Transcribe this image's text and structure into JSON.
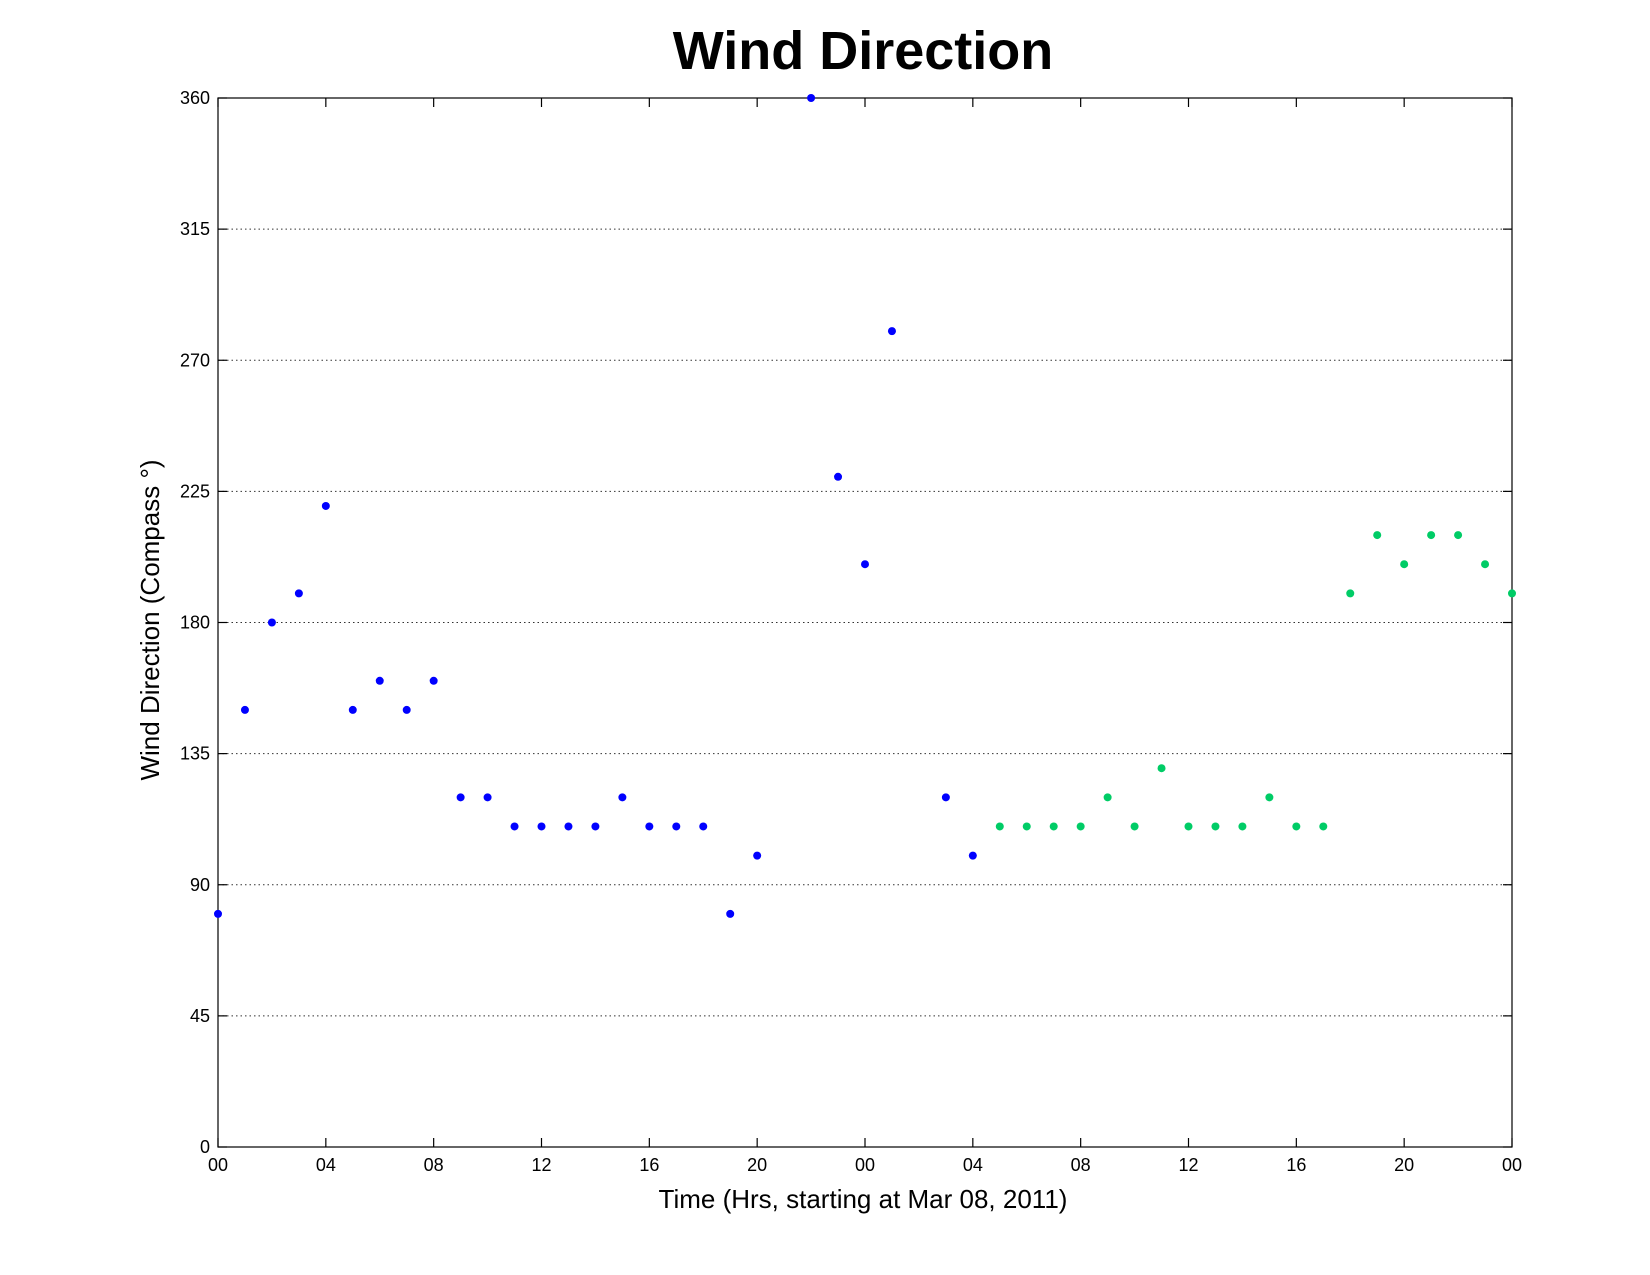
{
  "chart_data": {
    "type": "scatter",
    "title": "Wind Direction",
    "xlabel": "Time (Hrs, starting at Mar 08, 2011)",
    "ylabel": "Wind Direction (Compass  °)",
    "xlim": [
      0,
      48
    ],
    "ylim": [
      0,
      360
    ],
    "x_ticks": [
      0,
      4,
      8,
      12,
      16,
      20,
      24,
      28,
      32,
      36,
      40,
      44,
      48
    ],
    "x_tick_labels": [
      "00",
      "04",
      "08",
      "12",
      "16",
      "20",
      "00",
      "04",
      "08",
      "12",
      "16",
      "20",
      "00"
    ],
    "y_ticks": [
      0,
      45,
      90,
      135,
      180,
      225,
      270,
      315,
      360
    ],
    "y_tick_labels": [
      "0",
      "45",
      "90",
      "135",
      "180",
      "225",
      "270",
      "315",
      "360"
    ],
    "grid": "horizontal dotted",
    "series": [
      {
        "color": "#0000ff",
        "points": [
          [
            0,
            80
          ],
          [
            1,
            150
          ],
          [
            2,
            180
          ],
          [
            3,
            190
          ],
          [
            4,
            220
          ],
          [
            5,
            150
          ],
          [
            6,
            160
          ],
          [
            7,
            150
          ],
          [
            8,
            160
          ],
          [
            9,
            120
          ],
          [
            10,
            120
          ],
          [
            11,
            110
          ],
          [
            12,
            110
          ],
          [
            13,
            110
          ],
          [
            14,
            110
          ],
          [
            15,
            120
          ],
          [
            16,
            110
          ],
          [
            17,
            110
          ],
          [
            18,
            110
          ],
          [
            19,
            80
          ],
          [
            20,
            100
          ],
          [
            22,
            360
          ],
          [
            23,
            230
          ],
          [
            24,
            200
          ],
          [
            25,
            280
          ],
          [
            27,
            120
          ],
          [
            28,
            100
          ]
        ]
      },
      {
        "color": "#00cc66",
        "points": [
          [
            29,
            110
          ],
          [
            30,
            110
          ],
          [
            31,
            110
          ],
          [
            32,
            110
          ],
          [
            33,
            120
          ],
          [
            34,
            110
          ],
          [
            35,
            130
          ],
          [
            36,
            110
          ],
          [
            37,
            110
          ],
          [
            38,
            110
          ],
          [
            39,
            120
          ],
          [
            40,
            110
          ],
          [
            41,
            110
          ],
          [
            42,
            190
          ],
          [
            43,
            210
          ],
          [
            44,
            200
          ],
          [
            45,
            210
          ],
          [
            46,
            210
          ],
          [
            47,
            200
          ],
          [
            48,
            190
          ]
        ]
      }
    ]
  }
}
